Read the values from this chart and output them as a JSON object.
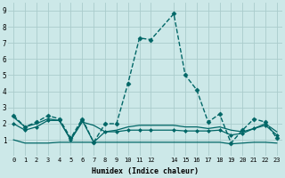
{
  "xlabel": "Humidex (Indice chaleur)",
  "background_color": "#cce8e8",
  "grid_color": "#aacccc",
  "line_color": "#006666",
  "xlim": [
    -0.5,
    23.5
  ],
  "ylim": [
    0.0,
    9.5
  ],
  "xticks": [
    0,
    1,
    2,
    3,
    4,
    5,
    6,
    7,
    8,
    9,
    10,
    11,
    12,
    14,
    15,
    16,
    17,
    18,
    19,
    20,
    21,
    22,
    23
  ],
  "yticks": [
    1,
    2,
    3,
    4,
    5,
    6,
    7,
    8,
    9
  ],
  "series": [
    {
      "x": [
        0,
        1,
        2,
        3,
        4,
        5,
        6,
        7,
        8,
        9,
        10,
        11,
        12,
        14,
        15,
        16,
        17,
        18,
        19,
        20,
        21,
        22,
        23
      ],
      "y": [
        2.5,
        1.8,
        2.1,
        2.5,
        2.3,
        1.1,
        2.3,
        0.85,
        2.0,
        2.0,
        4.5,
        7.3,
        7.2,
        8.8,
        5.0,
        4.1,
        2.1,
        2.6,
        0.8,
        1.6,
        2.3,
        2.1,
        1.1
      ],
      "marker": "D",
      "markersize": 2.5,
      "linewidth": 1.0,
      "linestyle": "--"
    },
    {
      "x": [
        0,
        1,
        2,
        3,
        4,
        5,
        6,
        7,
        8,
        9,
        10,
        11,
        12,
        14,
        15,
        16,
        17,
        18,
        19,
        20,
        21,
        22,
        23
      ],
      "y": [
        2.4,
        1.8,
        2.0,
        2.3,
        2.2,
        1.0,
        2.1,
        1.9,
        1.5,
        1.6,
        1.8,
        1.9,
        1.9,
        1.9,
        1.8,
        1.8,
        1.7,
        1.8,
        1.6,
        1.5,
        1.7,
        2.0,
        1.5
      ],
      "marker": null,
      "markersize": 0,
      "linewidth": 0.9,
      "linestyle": "-"
    },
    {
      "x": [
        0,
        1,
        2,
        3,
        4,
        5,
        6,
        7,
        8,
        9,
        10,
        11,
        12,
        14,
        15,
        16,
        17,
        18,
        19,
        20,
        21,
        22,
        23
      ],
      "y": [
        2.0,
        1.6,
        1.8,
        2.2,
        2.2,
        1.0,
        2.2,
        0.85,
        1.5,
        1.5,
        1.6,
        1.6,
        1.6,
        1.6,
        1.55,
        1.55,
        1.55,
        1.6,
        1.3,
        1.4,
        1.7,
        1.9,
        1.3
      ],
      "marker": "D",
      "markersize": 2.0,
      "linewidth": 0.9,
      "linestyle": "-"
    },
    {
      "x": [
        0,
        1,
        2,
        3,
        4,
        5,
        6,
        7,
        8,
        9,
        10,
        11,
        12,
        14,
        15,
        16,
        17,
        18,
        19,
        20,
        21,
        22,
        23
      ],
      "y": [
        1.0,
        0.8,
        0.8,
        0.8,
        0.85,
        0.85,
        0.85,
        0.85,
        0.85,
        0.85,
        0.85,
        0.85,
        0.85,
        0.85,
        0.85,
        0.85,
        0.85,
        0.85,
        0.75,
        0.8,
        0.85,
        0.85,
        0.8
      ],
      "marker": null,
      "markersize": 0,
      "linewidth": 0.9,
      "linestyle": "-"
    }
  ]
}
